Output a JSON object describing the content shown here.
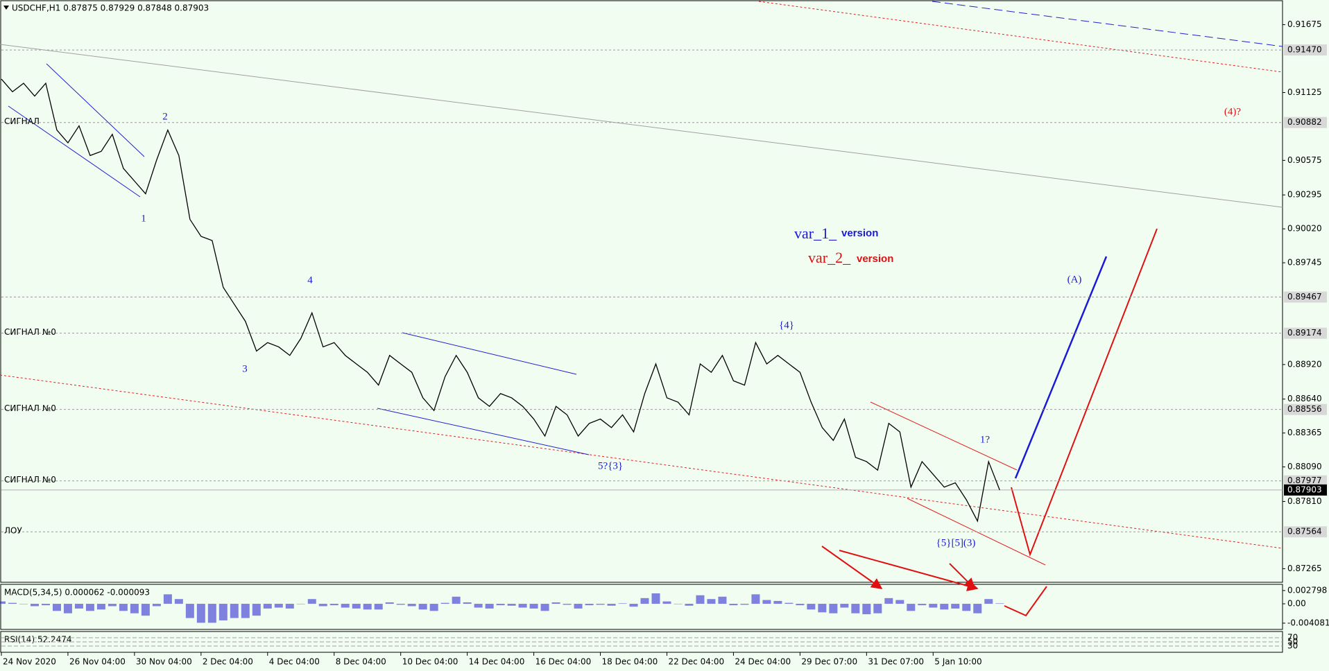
{
  "chart_data": [
    {
      "type": "line",
      "title": "USDCHF,H1  0.87875 0.87929 0.87848 0.87903",
      "color": "#000000",
      "x": [
        0,
        1,
        2,
        3,
        4,
        5,
        6,
        7,
        8,
        9,
        10,
        11,
        12,
        13,
        14,
        15,
        16,
        17,
        18,
        19,
        20,
        21,
        22,
        23,
        24,
        25,
        26,
        27,
        28,
        29,
        30,
        31,
        32,
        33,
        34,
        35,
        36,
        37,
        38,
        39,
        40,
        41,
        42,
        43,
        44,
        45,
        46,
        47,
        48,
        49,
        50,
        51,
        52,
        53,
        54,
        55,
        56,
        57,
        58,
        59,
        60,
        61,
        62,
        63,
        64,
        65,
        66,
        67,
        68,
        69,
        70,
        71,
        72,
        73,
        74,
        75,
        76,
        77,
        78,
        79,
        80,
        81,
        82,
        83,
        84,
        85,
        86,
        87,
        88,
        89,
        90
      ],
      "values": [
        0.91234,
        0.91131,
        0.912,
        0.91096,
        0.912,
        0.90821,
        0.90717,
        0.90855,
        0.90614,
        0.90648,
        0.90786,
        0.9051,
        0.90407,
        0.90304,
        0.90579,
        0.90821,
        0.90614,
        0.90097,
        0.89959,
        0.89925,
        0.89546,
        0.89408,
        0.8927,
        0.89029,
        0.89098,
        0.89063,
        0.88994,
        0.89132,
        0.89339,
        0.89063,
        0.89098,
        0.88994,
        0.88925,
        0.88857,
        0.88753,
        0.88994,
        0.88925,
        0.88857,
        0.8865,
        0.88547,
        0.88822,
        0.88994,
        0.88857,
        0.8865,
        0.88581,
        0.88685,
        0.8865,
        0.88581,
        0.88478,
        0.8834,
        0.88581,
        0.88512,
        0.8834,
        0.88443,
        0.88478,
        0.88409,
        0.88512,
        0.88374,
        0.88685,
        0.88925,
        0.8865,
        0.88615,
        0.88512,
        0.88925,
        0.88857,
        0.88994,
        0.88788,
        0.88753,
        0.89098,
        0.88925,
        0.88994,
        0.88925,
        0.88857,
        0.88615,
        0.88409,
        0.88305,
        0.88478,
        0.88168,
        0.88133,
        0.88064,
        0.88443,
        0.88374,
        0.87926,
        0.88133,
        0.8803,
        0.87926,
        0.87961,
        0.87823,
        0.87651,
        0.88133,
        0.87903
      ],
      "xlim": [
        0,
        115.5
      ],
      "xticks": [
        {
          "value": 0,
          "label": "24 Nov 2020"
        },
        {
          "value": 6,
          "label": "26 Nov 04:00"
        },
        {
          "value": 12,
          "label": "30 Nov 04:00"
        },
        {
          "value": 18,
          "label": "2 Dec 04:00"
        },
        {
          "value": 24,
          "label": "4 Dec 04:00"
        },
        {
          "value": 30,
          "label": "8 Dec 04:00"
        },
        {
          "value": 36,
          "label": "10 Dec 04:00"
        },
        {
          "value": 42,
          "label": "14 Dec 04:00"
        },
        {
          "value": 48,
          "label": "16 Dec 04:00"
        },
        {
          "value": 54,
          "label": "18 Dec 04:00"
        },
        {
          "value": 60,
          "label": "22 Dec 04:00"
        },
        {
          "value": 66,
          "label": "24 Dec 04:00"
        },
        {
          "value": 72,
          "label": "29 Dec 07:00"
        },
        {
          "value": 78,
          "label": "31 Dec 07:00"
        },
        {
          "value": 84,
          "label": "5 Jan 10:00"
        }
      ],
      "ylim": [
        0.87155,
        0.91875
      ],
      "yticks": [
        0.91675,
        0.91125,
        0.90575,
        0.90295,
        {
          "value": 0.9002,
          "label": "0.90020"
        },
        0.89745,
        {
          "value": 0.8892,
          "label": "0.88920"
        },
        {
          "value": 0.8864,
          "label": "0.88640"
        },
        0.88365,
        {
          "value": 0.8809,
          "label": "0.88090"
        },
        {
          "value": 0.8781,
          "label": "0.87810"
        },
        0.87265
      ],
      "levels": [
        {
          "value": 0.9147,
          "label": "0.91470"
        },
        {
          "value": 0.90882,
          "label": "0.90882",
          "name": "СИГНАЛ"
        },
        {
          "value": 0.89467,
          "label": "0.89467"
        },
        {
          "value": 0.89174,
          "label": "0.89174",
          "name": "СИГНАЛ №0"
        },
        {
          "value": 0.88556,
          "label": "0.88556",
          "name": "СИГНАЛ №0"
        },
        {
          "value": 0.87977,
          "label": "0.87977",
          "name": "СИГНАЛ №0"
        },
        {
          "value": 0.87564,
          "label": "0.87564",
          "name": "ЛОУ"
        }
      ],
      "last_price": {
        "value": 0.87903,
        "label": "0.87903"
      },
      "annotations": [
        "1",
        "2",
        "3",
        "4",
        "5?{3}",
        "{4}",
        "{5}[5](3)",
        "1?",
        "(A)",
        "(4)?",
        "var_1_",
        "version",
        "var_2_",
        "version"
      ]
    },
    {
      "type": "bar",
      "title": "MACD(5,34,5) 0.000062 -0.000093",
      "color": "#3030d0",
      "values": [
        0.0005,
        0.0002,
        0,
        -0.0005,
        -0.0003,
        -0.0015,
        -0.002,
        -0.001,
        -0.0015,
        -0.0012,
        -0.0005,
        -0.0015,
        -0.002,
        -0.0025,
        -0.0005,
        0.002,
        0.001,
        -0.003,
        -0.004,
        -0.004,
        -0.0035,
        -0.003,
        -0.003,
        -0.0025,
        -0.001,
        -0.0008,
        -0.001,
        0,
        0.001,
        -0.0005,
        -0.0003,
        -0.0008,
        -0.001,
        -0.0012,
        -0.0012,
        0.0003,
        -0.0002,
        -0.0005,
        -0.0012,
        -0.0015,
        0.0002,
        0.0015,
        0.0003,
        -0.0008,
        -0.001,
        -0.0003,
        -0.0004,
        -0.0008,
        -0.001,
        -0.0015,
        0.0003,
        -0.0002,
        -0.001,
        -0.0003,
        -0.0002,
        -0.0004,
        0.0001,
        -0.0006,
        0.0012,
        0.0022,
        0.0005,
        0,
        -0.0004,
        0.0018,
        0.001,
        0.0015,
        -0.0003,
        -0.0002,
        0.002,
        0.0008,
        0.0006,
        0.0002,
        -0.0003,
        -0.0012,
        -0.0018,
        -0.002,
        -0.0008,
        -0.002,
        -0.0022,
        -0.002,
        0.0012,
        0.0008,
        -0.0015,
        -0.0003,
        -0.0008,
        -0.0012,
        -0.001,
        -0.0015,
        -0.002,
        0.001,
        0.0001
      ],
      "ylim": [
        -0.0054,
        0.0041
      ],
      "yticks": [
        0.002798,
        {
          "value": 0,
          "label": "0.00"
        },
        -0.004081
      ]
    },
    {
      "type": "levels",
      "title": "RSI(14) 52.2474",
      "ylim": [
        0,
        100
      ],
      "yticks": [
        70,
        50,
        30
      ]
    }
  ]
}
